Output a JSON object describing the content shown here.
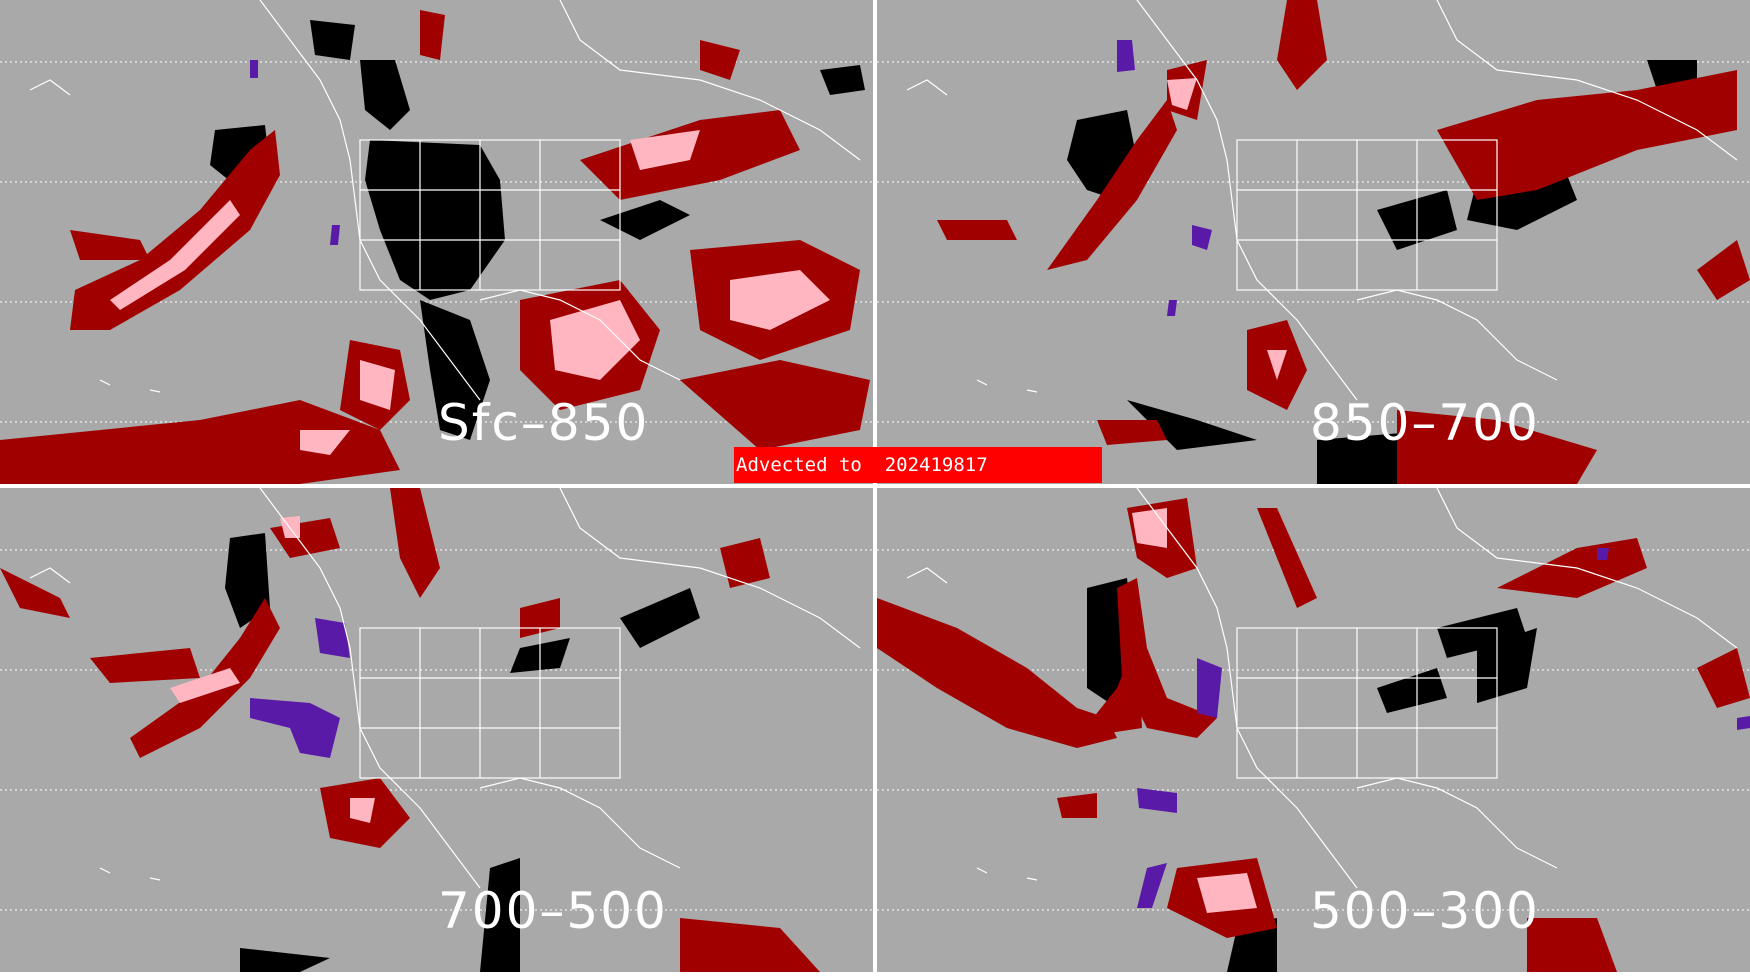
{
  "panels": [
    {
      "id": "sfc-850",
      "label": "Sfc–850"
    },
    {
      "id": "850-700",
      "label": "850–700"
    },
    {
      "id": "700-500",
      "label": "700–500"
    },
    {
      "id": "500-300",
      "label": "500–300"
    }
  ],
  "banner": {
    "text": "Advected to  202419817"
  },
  "colors": {
    "background": "#a9a9a9",
    "dark_red": "#a00000",
    "pink": "#ffb6c1",
    "black": "#000000",
    "purple": "#5a1aa8",
    "map_lines": "#ffffff",
    "banner": "#ff0000"
  }
}
